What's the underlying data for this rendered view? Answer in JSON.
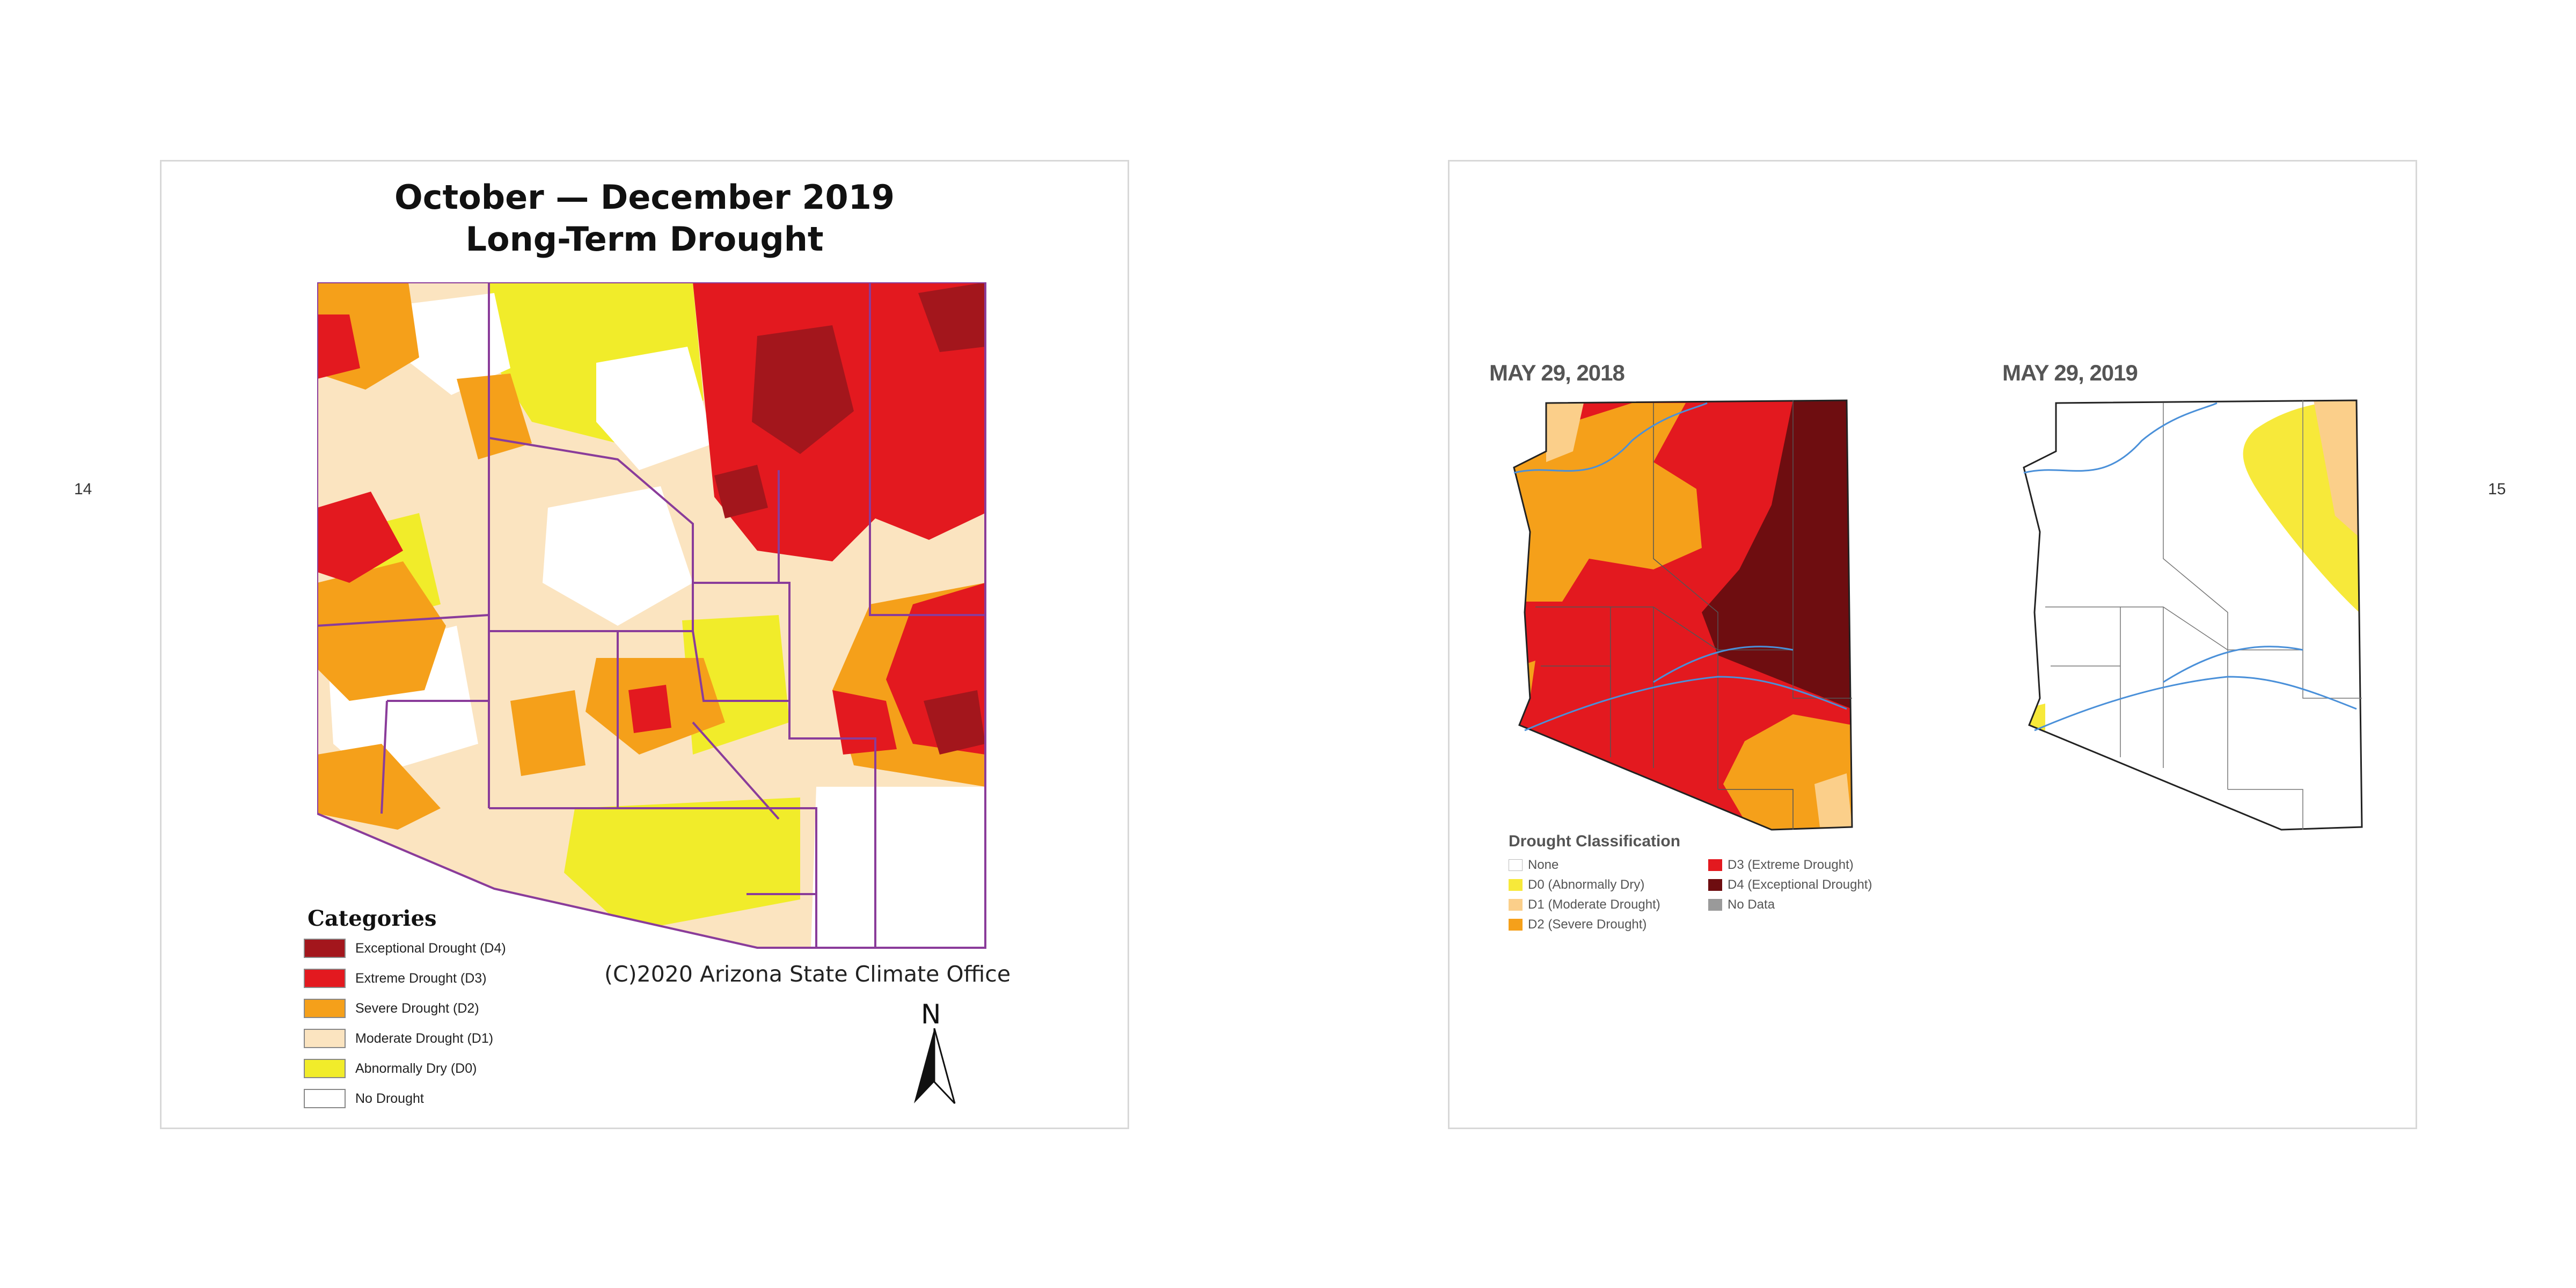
{
  "page_numbers": {
    "left": "14",
    "right": "15"
  },
  "left_panel": {
    "title_line1": "October — December 2019",
    "title_line2": "Long-Term Drought",
    "legend_title": "Categories",
    "legend": [
      {
        "label": "Exceptional Drought (D4)",
        "color": "#a3161c"
      },
      {
        "label": "Extreme Drought (D3)",
        "color": "#e3191f"
      },
      {
        "label": "Severe Drought (D2)",
        "color": "#f5a01a"
      },
      {
        "label": "Moderate Drought (D1)",
        "color": "#fbe4c0"
      },
      {
        "label": "Abnormally Dry (D0)",
        "color": "#f1ec2a"
      },
      {
        "label": "No Drought",
        "color": "#ffffff"
      }
    ],
    "credit": "(C)2020 Arizona State Climate Office",
    "north_label": "N"
  },
  "right_panel": {
    "map1_date": "MAY 29, 2018",
    "map2_date": "MAY 29, 2019",
    "legend_title": "Drought Classification",
    "legend": [
      {
        "label": "None",
        "color": "#ffffff"
      },
      {
        "label": "D0 (Abnormally Dry)",
        "color": "#f7e93a"
      },
      {
        "label": "D1 (Moderate Drought)",
        "color": "#fbcf8a"
      },
      {
        "label": "D2 (Severe Drought)",
        "color": "#f5a01a"
      },
      {
        "label": "D3 (Extreme Drought)",
        "color": "#e3191f"
      },
      {
        "label": "D4 (Exceptional Drought)",
        "color": "#6e0d10"
      },
      {
        "label": "No Data",
        "color": "#9a9a9a"
      }
    ]
  }
}
